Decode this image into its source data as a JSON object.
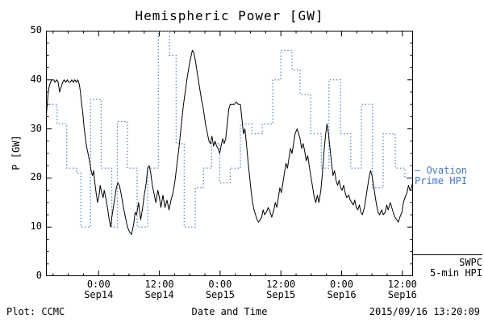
{
  "title": "Hemispheric Power [GW]",
  "footer": {
    "left": "Plot: CCMC",
    "right": "2015/09/16 13:20:09"
  },
  "legend": {
    "ovation": {
      "line1": "– Ovation",
      "line2": "Prime HPI",
      "color": "#4477cc"
    },
    "swpc": {
      "line1": "SWPC",
      "line2": "5-min HPI",
      "color": "#000000"
    }
  },
  "chart_data": {
    "type": "line",
    "title": "Hemispheric Power [GW]",
    "xlabel": "Date and Time",
    "ylabel": "P [GW]",
    "x_unit": "hours relative to 2015-09-14 00:00",
    "xlim": [
      -10.4,
      62.1
    ],
    "ylim": [
      0,
      50
    ],
    "grid": false,
    "yticks": [
      0,
      10,
      20,
      30,
      40,
      50
    ],
    "xticks": [
      {
        "t": 0,
        "time": "0:00",
        "date": "Sep14"
      },
      {
        "t": 12,
        "time": "12:00",
        "date": "Sep14"
      },
      {
        "t": 24,
        "time": "0:00",
        "date": "Sep15"
      },
      {
        "t": 36,
        "time": "12:00",
        "date": "Sep15"
      },
      {
        "t": 48,
        "time": "0:00",
        "date": "Sep16"
      },
      {
        "t": 60,
        "time": "12:00",
        "date": "Sep16"
      }
    ],
    "series": [
      {
        "name": "SWPC 5-min HPI",
        "style": "solid",
        "color": "#000000",
        "points": [
          [
            -10.4,
            32
          ],
          [
            -10.2,
            34.5
          ],
          [
            -10.0,
            37
          ],
          [
            -9.8,
            38.5
          ],
          [
            -9.5,
            39.5
          ],
          [
            -9.2,
            40
          ],
          [
            -8.9,
            40
          ],
          [
            -8.6,
            39.5
          ],
          [
            -8.3,
            40
          ],
          [
            -8.0,
            39.5
          ],
          [
            -7.7,
            37.5
          ],
          [
            -7.4,
            38.5
          ],
          [
            -7.1,
            39.5
          ],
          [
            -6.8,
            40
          ],
          [
            -6.5,
            39.5
          ],
          [
            -6.2,
            40
          ],
          [
            -5.9,
            39.5
          ],
          [
            -5.6,
            39.5
          ],
          [
            -5.3,
            40
          ],
          [
            -5.0,
            39.5
          ],
          [
            -4.7,
            40
          ],
          [
            -4.4,
            39.5
          ],
          [
            -4.1,
            40
          ],
          [
            -3.8,
            39
          ],
          [
            -3.6,
            37.5
          ],
          [
            -3.4,
            35.5
          ],
          [
            -3.1,
            33
          ],
          [
            -2.9,
            30.5
          ],
          [
            -2.6,
            28
          ],
          [
            -2.4,
            26.5
          ],
          [
            -2.1,
            25
          ],
          [
            -1.8,
            23.5
          ],
          [
            -1.5,
            21.5
          ],
          [
            -1.2,
            20.5
          ],
          [
            -1.0,
            21.5
          ],
          [
            -0.8,
            19.5
          ],
          [
            -0.5,
            17
          ],
          [
            -0.2,
            15
          ],
          [
            0.1,
            16.5
          ],
          [
            0.3,
            18.5
          ],
          [
            0.6,
            17
          ],
          [
            0.9,
            16
          ],
          [
            1.1,
            17.5
          ],
          [
            1.4,
            16
          ],
          [
            1.8,
            13.5
          ],
          [
            2.1,
            11.5
          ],
          [
            2.4,
            10
          ],
          [
            2.6,
            12
          ],
          [
            2.9,
            14
          ],
          [
            3.2,
            16
          ],
          [
            3.5,
            18
          ],
          [
            3.8,
            19
          ],
          [
            4.1,
            18.5
          ],
          [
            4.5,
            16.5
          ],
          [
            4.9,
            14
          ],
          [
            5.3,
            12
          ],
          [
            5.7,
            10
          ],
          [
            6.1,
            9
          ],
          [
            6.5,
            8.5
          ],
          [
            6.9,
            10.5
          ],
          [
            7.2,
            13
          ],
          [
            7.5,
            12.5
          ],
          [
            7.9,
            15
          ],
          [
            8.3,
            11.5
          ],
          [
            8.7,
            14
          ],
          [
            9.0,
            16.5
          ],
          [
            9.4,
            19
          ],
          [
            9.7,
            22
          ],
          [
            10.0,
            22.5
          ],
          [
            10.3,
            21
          ],
          [
            10.6,
            18.5
          ],
          [
            10.9,
            17
          ],
          [
            11.3,
            15
          ],
          [
            11.7,
            17.5
          ],
          [
            12.0,
            16
          ],
          [
            12.3,
            14
          ],
          [
            12.7,
            16.5
          ],
          [
            13.1,
            14
          ],
          [
            13.5,
            15.5
          ],
          [
            13.9,
            13.5
          ],
          [
            14.3,
            15.5
          ],
          [
            14.7,
            17
          ],
          [
            15.1,
            19.5
          ],
          [
            15.5,
            23
          ],
          [
            15.9,
            26.5
          ],
          [
            16.3,
            30.5
          ],
          [
            16.7,
            34.5
          ],
          [
            17.1,
            37.5
          ],
          [
            17.5,
            40.5
          ],
          [
            17.9,
            43
          ],
          [
            18.2,
            44.5
          ],
          [
            18.5,
            46
          ],
          [
            18.8,
            45.5
          ],
          [
            19.1,
            44
          ],
          [
            19.4,
            42
          ],
          [
            19.7,
            40
          ],
          [
            20.0,
            38
          ],
          [
            20.3,
            36
          ],
          [
            20.6,
            34.5
          ],
          [
            20.9,
            32.5
          ],
          [
            21.2,
            30.5
          ],
          [
            21.5,
            29
          ],
          [
            21.8,
            27.5
          ],
          [
            22.1,
            27
          ],
          [
            22.4,
            28.5
          ],
          [
            22.7,
            26.5
          ],
          [
            23.0,
            27.5
          ],
          [
            23.3,
            26.5
          ],
          [
            23.6,
            26
          ],
          [
            23.9,
            25
          ],
          [
            24.2,
            26.5
          ],
          [
            24.5,
            28
          ],
          [
            24.8,
            27
          ],
          [
            25.1,
            28
          ],
          [
            25.4,
            31
          ],
          [
            25.7,
            34
          ],
          [
            26.0,
            35
          ],
          [
            26.4,
            35
          ],
          [
            26.8,
            35
          ],
          [
            27.2,
            35.5
          ],
          [
            27.6,
            35
          ],
          [
            28.0,
            35
          ],
          [
            28.3,
            32
          ],
          [
            28.6,
            29
          ],
          [
            28.9,
            30
          ],
          [
            29.2,
            27
          ],
          [
            29.5,
            23.5
          ],
          [
            29.8,
            20.5
          ],
          [
            30.1,
            17.5
          ],
          [
            30.4,
            15
          ],
          [
            30.7,
            13.5
          ],
          [
            31.0,
            12.5
          ],
          [
            31.3,
            11.5
          ],
          [
            31.6,
            11
          ],
          [
            31.9,
            11.5
          ],
          [
            32.2,
            12
          ],
          [
            32.5,
            13.5
          ],
          [
            32.8,
            12.5
          ],
          [
            33.1,
            13
          ],
          [
            33.5,
            14
          ],
          [
            33.9,
            13
          ],
          [
            34.2,
            12
          ],
          [
            34.6,
            13.5
          ],
          [
            34.9,
            15
          ],
          [
            35.2,
            14
          ],
          [
            35.5,
            16
          ],
          [
            35.8,
            18
          ],
          [
            36.1,
            17
          ],
          [
            36.4,
            19
          ],
          [
            36.7,
            21
          ],
          [
            37.0,
            23
          ],
          [
            37.3,
            22
          ],
          [
            37.6,
            24
          ],
          [
            37.9,
            26
          ],
          [
            38.2,
            25
          ],
          [
            38.5,
            27
          ],
          [
            38.8,
            29
          ],
          [
            39.2,
            30
          ],
          [
            39.5,
            29
          ],
          [
            39.8,
            28
          ],
          [
            40.1,
            26
          ],
          [
            40.4,
            27
          ],
          [
            40.7,
            25.5
          ],
          [
            41.0,
            23.5
          ],
          [
            41.3,
            24.5
          ],
          [
            41.6,
            22.5
          ],
          [
            41.9,
            20.5
          ],
          [
            42.3,
            18
          ],
          [
            42.6,
            16
          ],
          [
            42.9,
            15
          ],
          [
            43.2,
            16.5
          ],
          [
            43.5,
            15
          ],
          [
            43.9,
            17.5
          ],
          [
            44.2,
            21
          ],
          [
            44.5,
            25
          ],
          [
            44.8,
            28.5
          ],
          [
            45.1,
            31
          ],
          [
            45.4,
            29
          ],
          [
            45.7,
            26
          ],
          [
            46.0,
            23
          ],
          [
            46.3,
            20.5
          ],
          [
            46.6,
            21.5
          ],
          [
            46.9,
            19.5
          ],
          [
            47.2,
            18.5
          ],
          [
            47.5,
            19.5
          ],
          [
            47.8,
            18
          ],
          [
            48.1,
            17.5
          ],
          [
            48.4,
            18.5
          ],
          [
            48.7,
            17
          ],
          [
            49.0,
            16
          ],
          [
            49.4,
            16.5
          ],
          [
            49.7,
            15.5
          ],
          [
            50.0,
            15
          ],
          [
            50.3,
            14.5
          ],
          [
            50.6,
            15.5
          ],
          [
            50.9,
            14
          ],
          [
            51.2,
            13.5
          ],
          [
            51.5,
            14.5
          ],
          [
            51.8,
            13
          ],
          [
            52.1,
            12.5
          ],
          [
            52.5,
            14
          ],
          [
            52.8,
            16
          ],
          [
            53.1,
            18
          ],
          [
            53.4,
            20
          ],
          [
            53.7,
            21.5
          ],
          [
            54.0,
            20.5
          ],
          [
            54.3,
            18.5
          ],
          [
            54.6,
            16.5
          ],
          [
            54.9,
            14.5
          ],
          [
            55.2,
            13
          ],
          [
            55.5,
            12.5
          ],
          [
            55.9,
            13.5
          ],
          [
            56.2,
            12.5
          ],
          [
            56.6,
            13
          ],
          [
            56.9,
            14.5
          ],
          [
            57.2,
            13.5
          ],
          [
            57.6,
            15
          ],
          [
            57.9,
            14
          ],
          [
            58.2,
            13
          ],
          [
            58.5,
            12
          ],
          [
            58.9,
            11.5
          ],
          [
            59.2,
            11
          ],
          [
            59.5,
            12
          ],
          [
            59.9,
            13
          ],
          [
            60.2,
            15
          ],
          [
            60.5,
            16
          ],
          [
            60.9,
            17
          ],
          [
            61.2,
            18.5
          ],
          [
            61.5,
            17.5
          ],
          [
            61.8,
            18
          ],
          [
            62.1,
            19.5
          ]
        ]
      },
      {
        "name": "Ovation Prime HPI",
        "style": "dotted-step",
        "color": "#4477cc",
        "steps": [
          [
            -10.4,
            35
          ],
          [
            -8.2,
            31
          ],
          [
            -6.3,
            22
          ],
          [
            -4.4,
            21
          ],
          [
            -3.5,
            10
          ],
          [
            -1.6,
            36
          ],
          [
            0.5,
            22
          ],
          [
            2.6,
            10
          ],
          [
            3.7,
            31.5
          ],
          [
            5.7,
            22
          ],
          [
            7.6,
            10
          ],
          [
            9.7,
            22
          ],
          [
            11.8,
            50
          ],
          [
            14.0,
            45
          ],
          [
            15.3,
            27
          ],
          [
            16.9,
            10
          ],
          [
            19.1,
            18
          ],
          [
            20.7,
            22
          ],
          [
            22.3,
            27
          ],
          [
            23.9,
            19
          ],
          [
            26.0,
            22
          ],
          [
            28.0,
            31
          ],
          [
            30.3,
            29
          ],
          [
            32.3,
            31
          ],
          [
            34.4,
            40
          ],
          [
            36.0,
            46
          ],
          [
            38.2,
            42
          ],
          [
            39.8,
            37
          ],
          [
            41.9,
            29
          ],
          [
            44.0,
            22
          ],
          [
            45.5,
            40
          ],
          [
            47.8,
            29
          ],
          [
            49.8,
            22
          ],
          [
            51.9,
            35
          ],
          [
            54.1,
            18
          ],
          [
            56.2,
            29
          ],
          [
            58.6,
            22
          ],
          [
            60.5,
            20
          ]
        ]
      }
    ]
  }
}
